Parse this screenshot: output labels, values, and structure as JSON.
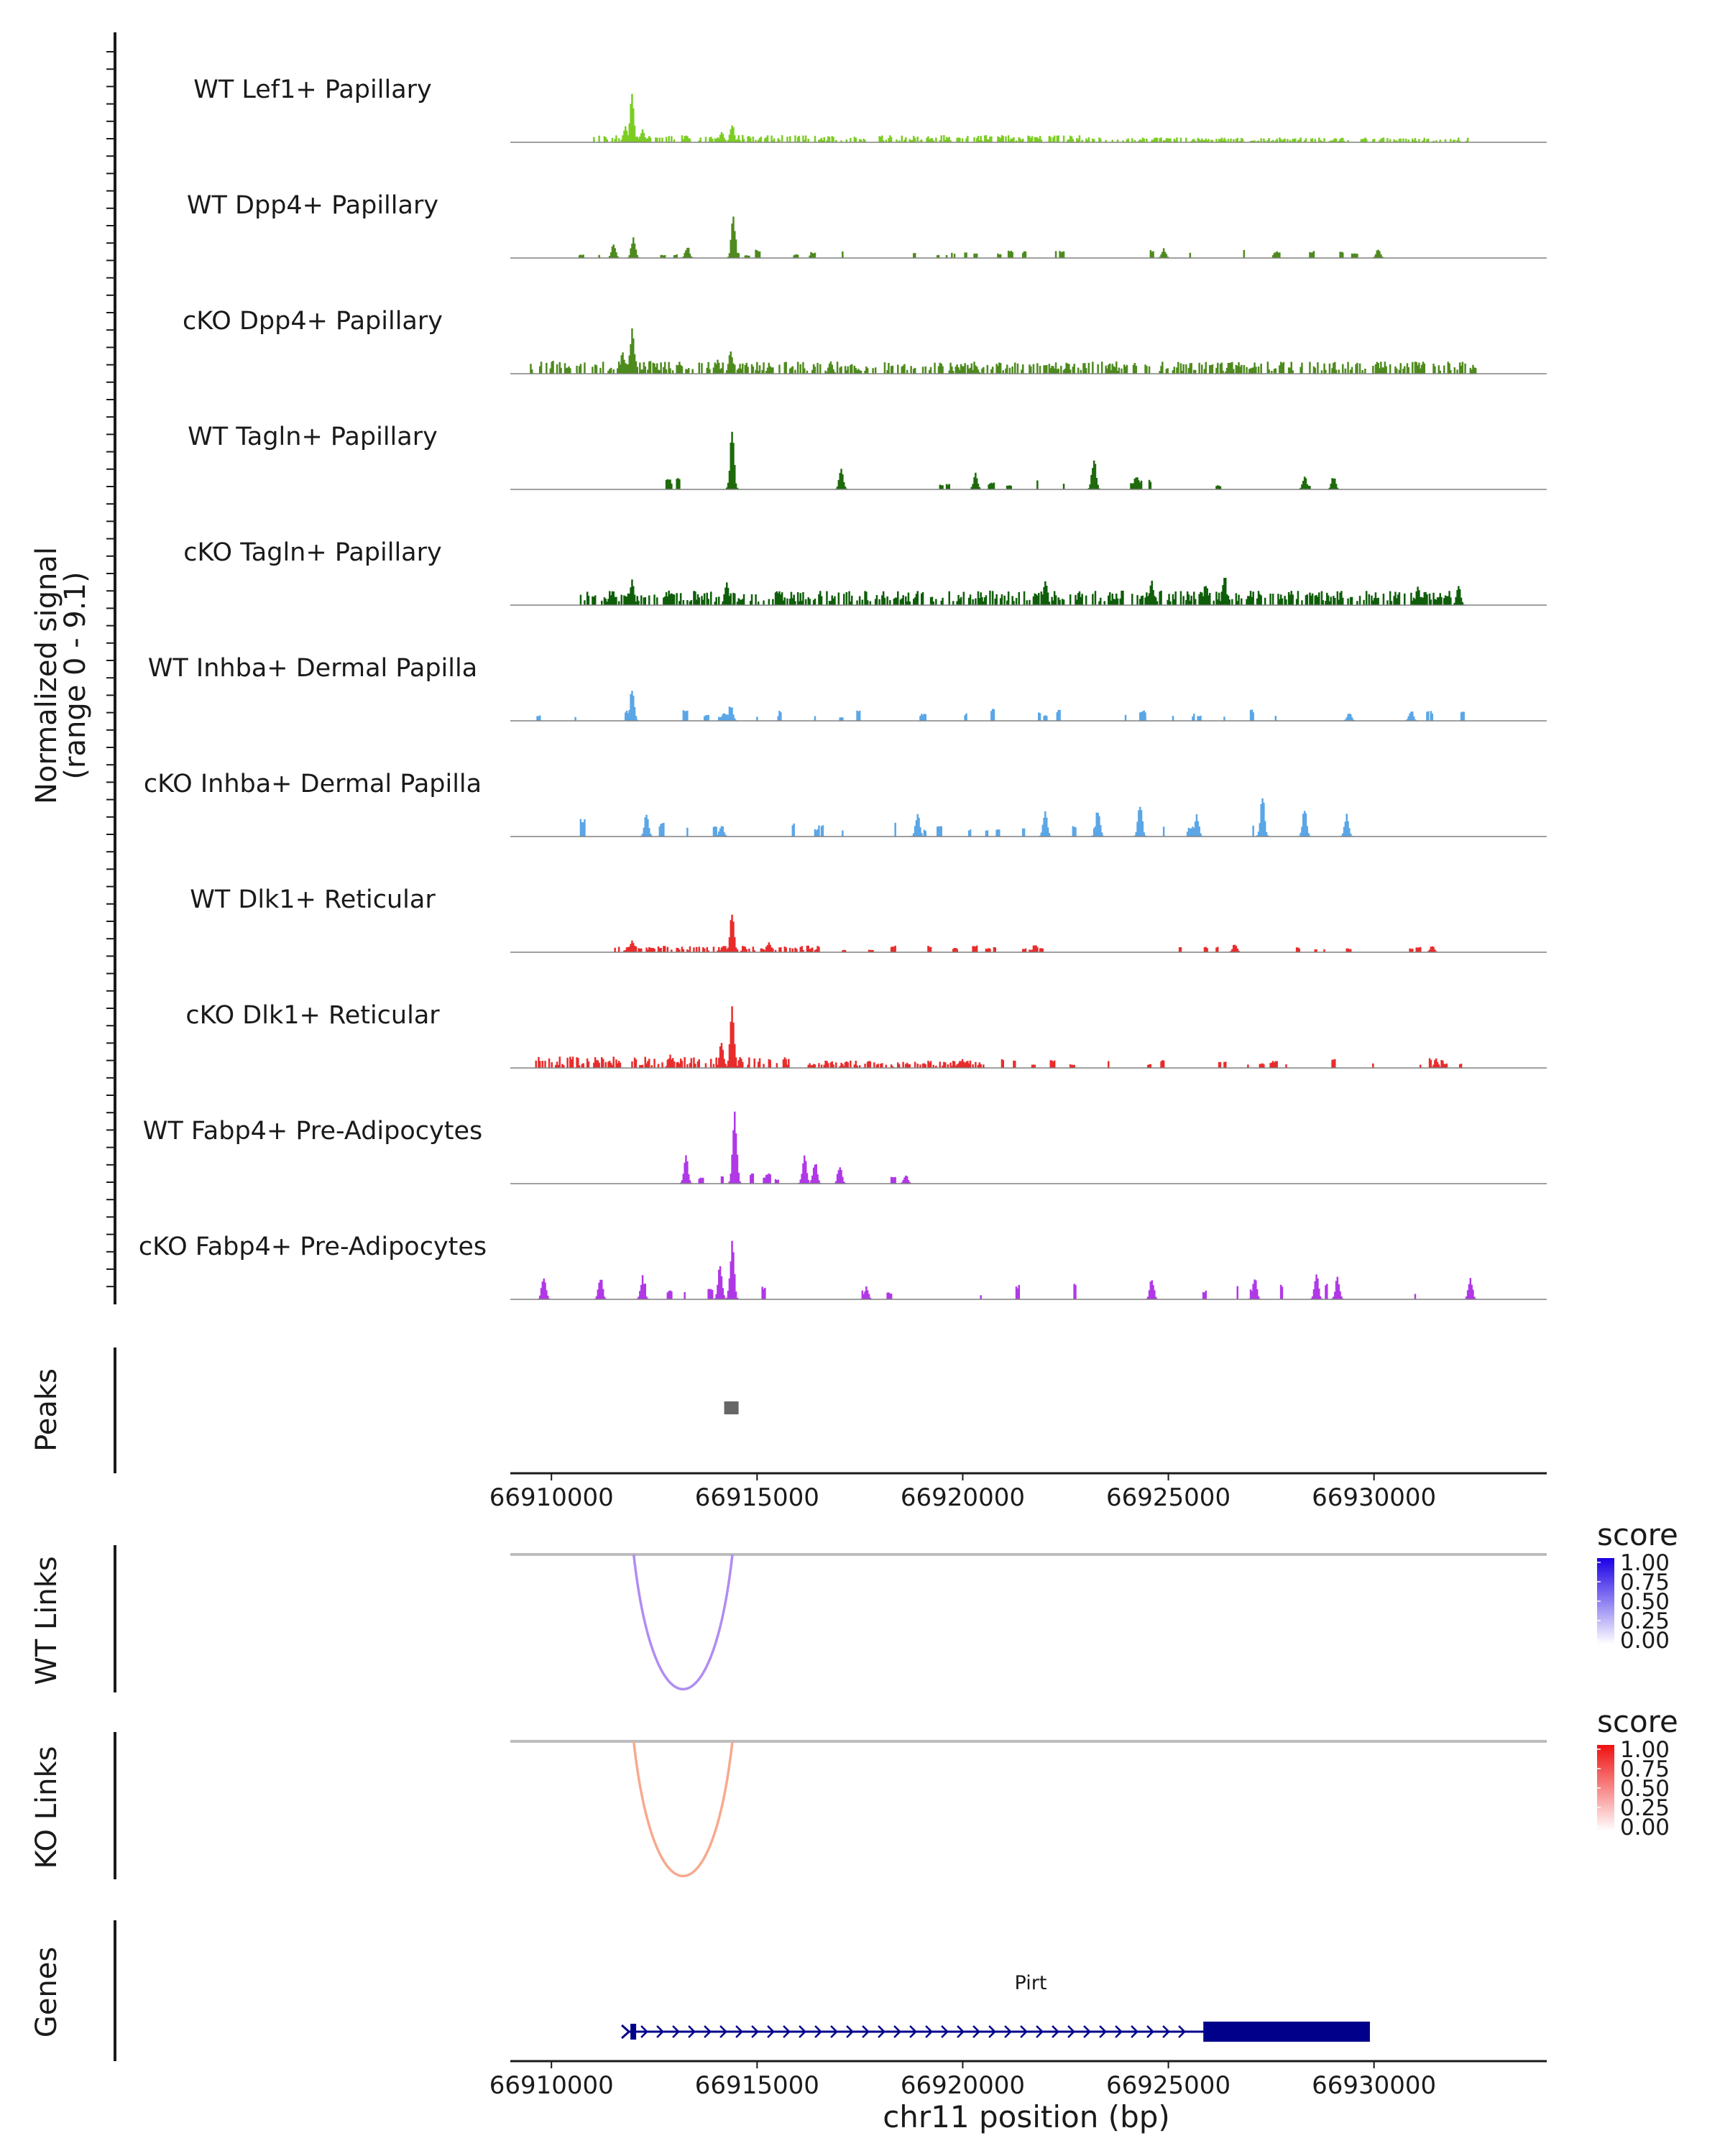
{
  "chart_data": {
    "type": "area",
    "title": "",
    "coverage": {
      "ylabel_line1": "Normalized signal",
      "ylabel_line2": "(range 0 - 9.1)",
      "ymax": 9.1,
      "xlim": [
        66909000,
        66934200
      ],
      "tracks": [
        {
          "name": "WT Lef1+ Papillary",
          "color": "#7CCD23",
          "peaks": [
            [
              66911950,
              5.0
            ],
            [
              66911800,
              1.8
            ],
            [
              66912200,
              1.4
            ],
            [
              66914400,
              1.8
            ],
            [
              66914150,
              1.0
            ]
          ],
          "bands": [
            [
              66911000,
              66923000,
              0.45
            ],
            [
              66923000,
              66932300,
              0.3
            ]
          ]
        },
        {
          "name": "WT Dpp4+ Papillary",
          "color": "#4E8B1E",
          "peaks": [
            [
              66914420,
              4.2
            ],
            [
              66911980,
              2.2
            ],
            [
              66911500,
              1.5
            ],
            [
              66913300,
              1.2
            ],
            [
              66924900,
              0.9
            ],
            [
              66930100,
              0.9
            ]
          ],
          "sparse": [
            [
              66909800,
              66930300,
              34,
              0.6
            ]
          ]
        },
        {
          "name": "cKO Dpp4+ Papillary",
          "color": "#4E8B1E",
          "peaks": [
            [
              66911950,
              4.6
            ],
            [
              66911750,
              2.2
            ],
            [
              66914350,
              2.4
            ],
            [
              66914050,
              1.3
            ],
            [
              66916800,
              1.2
            ],
            [
              66926500,
              1.3
            ],
            [
              66920300,
              1.0
            ]
          ],
          "bands": [
            [
              66909500,
              66914500,
              0.8
            ],
            [
              66914500,
              66932500,
              0.75
            ]
          ]
        },
        {
          "name": "WT Tagln+ Papillary",
          "color": "#1F6A0C",
          "peaks": [
            [
              66914400,
              5.6
            ],
            [
              66923200,
              3.4
            ],
            [
              66917050,
              2.2
            ],
            [
              66920300,
              1.6
            ],
            [
              66924200,
              1.4
            ],
            [
              66929000,
              1.3
            ],
            [
              66928300,
              1.3
            ]
          ],
          "sparse": [
            [
              66912500,
              66929800,
              16,
              0.8
            ]
          ]
        },
        {
          "name": "cKO Tagln+ Papillary",
          "color": "#0F5E0A",
          "peaks": [
            [
              66914250,
              2.7
            ],
            [
              66926350,
              3.2
            ],
            [
              66925900,
              2.2
            ],
            [
              66922000,
              2.4
            ],
            [
              66924600,
              2.4
            ],
            [
              66911950,
              2.4
            ],
            [
              66931050,
              1.8
            ],
            [
              66932050,
              2.0
            ]
          ],
          "bands": [
            [
              66910600,
              66932100,
              0.9
            ]
          ]
        },
        {
          "name": "WT Inhba+ Dermal Papilla",
          "color": "#5AA6E6",
          "peaks": [
            [
              66911950,
              3.2
            ],
            [
              66914350,
              1.7
            ],
            [
              66930900,
              1.1
            ],
            [
              66929400,
              0.9
            ]
          ],
          "sparse": [
            [
              66909600,
              66932300,
              36,
              0.8
            ]
          ]
        },
        {
          "name": "cKO Inhba+ Dermal Papilla",
          "color": "#5AA6E6",
          "peaks": [
            [
              66914150,
              1.2
            ],
            [
              66927300,
              4.0
            ],
            [
              66928300,
              2.8
            ],
            [
              66924300,
              3.5
            ],
            [
              66923300,
              3.0
            ],
            [
              66922000,
              2.7
            ],
            [
              66925700,
              2.3
            ],
            [
              66912300,
              2.4
            ],
            [
              66929350,
              2.3
            ],
            [
              66918900,
              2.4
            ]
          ],
          "sparse": [
            [
              66909800,
              66929600,
              26,
              1.2
            ]
          ]
        },
        {
          "name": "WT Dlk1+ Reticular",
          "color": "#E82D2D",
          "peaks": [
            [
              66914380,
              3.8
            ],
            [
              66911950,
              1.3
            ],
            [
              66915300,
              1.0
            ],
            [
              66926600,
              0.9
            ],
            [
              66931400,
              0.7
            ]
          ],
          "bands": [
            [
              66911500,
              66916500,
              0.4
            ]
          ],
          "sparse": [
            [
              66910800,
              66931800,
              30,
              0.5
            ]
          ]
        },
        {
          "name": "cKO Dlk1+ Reticular",
          "color": "#E82D2D",
          "peaks": [
            [
              66914380,
              6.2
            ],
            [
              66914150,
              2.6
            ],
            [
              66912900,
              1.3
            ],
            [
              66920000,
              0.9
            ],
            [
              66931500,
              0.9
            ]
          ],
          "bands": [
            [
              66909600,
              66915800,
              0.7
            ],
            [
              66916200,
              66920500,
              0.45
            ]
          ],
          "sparse": [
            [
              66920500,
              66932200,
              26,
              0.7
            ]
          ]
        },
        {
          "name": "WT Fabp4+ Pre-Adipocytes",
          "color": "#B038E6",
          "peaks": [
            [
              66914450,
              7.5
            ],
            [
              66916150,
              2.8
            ],
            [
              66916400,
              2.3
            ],
            [
              66913270,
              2.7
            ],
            [
              66917000,
              1.6
            ],
            [
              66918600,
              0.9
            ]
          ],
          "sparse": [
            [
              66913000,
              66918700,
              8,
              0.8
            ]
          ]
        },
        {
          "name": "cKO Fabp4+ Pre-Adipocytes",
          "color": "#B038E6",
          "peaks": [
            [
              66914400,
              5.9
            ],
            [
              66914100,
              3.5
            ],
            [
              66909800,
              2.6
            ],
            [
              66911200,
              2.4
            ],
            [
              66912200,
              2.3
            ],
            [
              66917650,
              1.2
            ],
            [
              66927100,
              2.3
            ],
            [
              66928600,
              2.6
            ],
            [
              66929100,
              2.3
            ],
            [
              66932350,
              2.2
            ],
            [
              66924600,
              2.1
            ]
          ],
          "sparse": [
            [
              66911500,
              66931200,
              16,
              1.2
            ]
          ]
        }
      ]
    },
    "peaks": {
      "label": "Peaks",
      "regions": [
        [
          66914200,
          66914550
        ]
      ],
      "color": "#666666"
    },
    "axis_mid": {
      "ticks": [
        66910000,
        66915000,
        66920000,
        66925000,
        66930000
      ],
      "tick_labels": [
        "66910000",
        "66915000",
        "66920000",
        "66925000",
        "66930000"
      ]
    },
    "links": [
      {
        "label": "WT Links",
        "start": 66912000,
        "end": 66914400,
        "score": 0.4,
        "arc_color": "#B08CF3",
        "legend_title": "score",
        "legend_low": "#FFFFFF",
        "legend_high": "#1C00E6",
        "legend_labels": [
          "1.00",
          "0.75",
          "0.50",
          "0.25",
          "0.00"
        ]
      },
      {
        "label": "KO Links",
        "start": 66912000,
        "end": 66914400,
        "score": 0.4,
        "arc_color": "#F7A98F",
        "legend_title": "score",
        "legend_low": "#FFFFFF",
        "legend_high": "#F01010",
        "legend_labels": [
          "1.00",
          "0.75",
          "0.50",
          "0.25",
          "0.00"
        ]
      }
    ],
    "genes": {
      "label": "Genes",
      "color": "#00008B",
      "items": [
        {
          "name": "Pirt",
          "start": 66911850,
          "end": 66929900,
          "cds_start": 66925850,
          "cds_end": 66929900,
          "strand": "+"
        }
      ]
    },
    "xaxis": {
      "label": "chr11 position (bp)",
      "ticks": [
        66910000,
        66915000,
        66920000,
        66925000,
        66930000
      ],
      "tick_labels": [
        "66910000",
        "66915000",
        "66920000",
        "66925000",
        "66930000"
      ]
    }
  }
}
